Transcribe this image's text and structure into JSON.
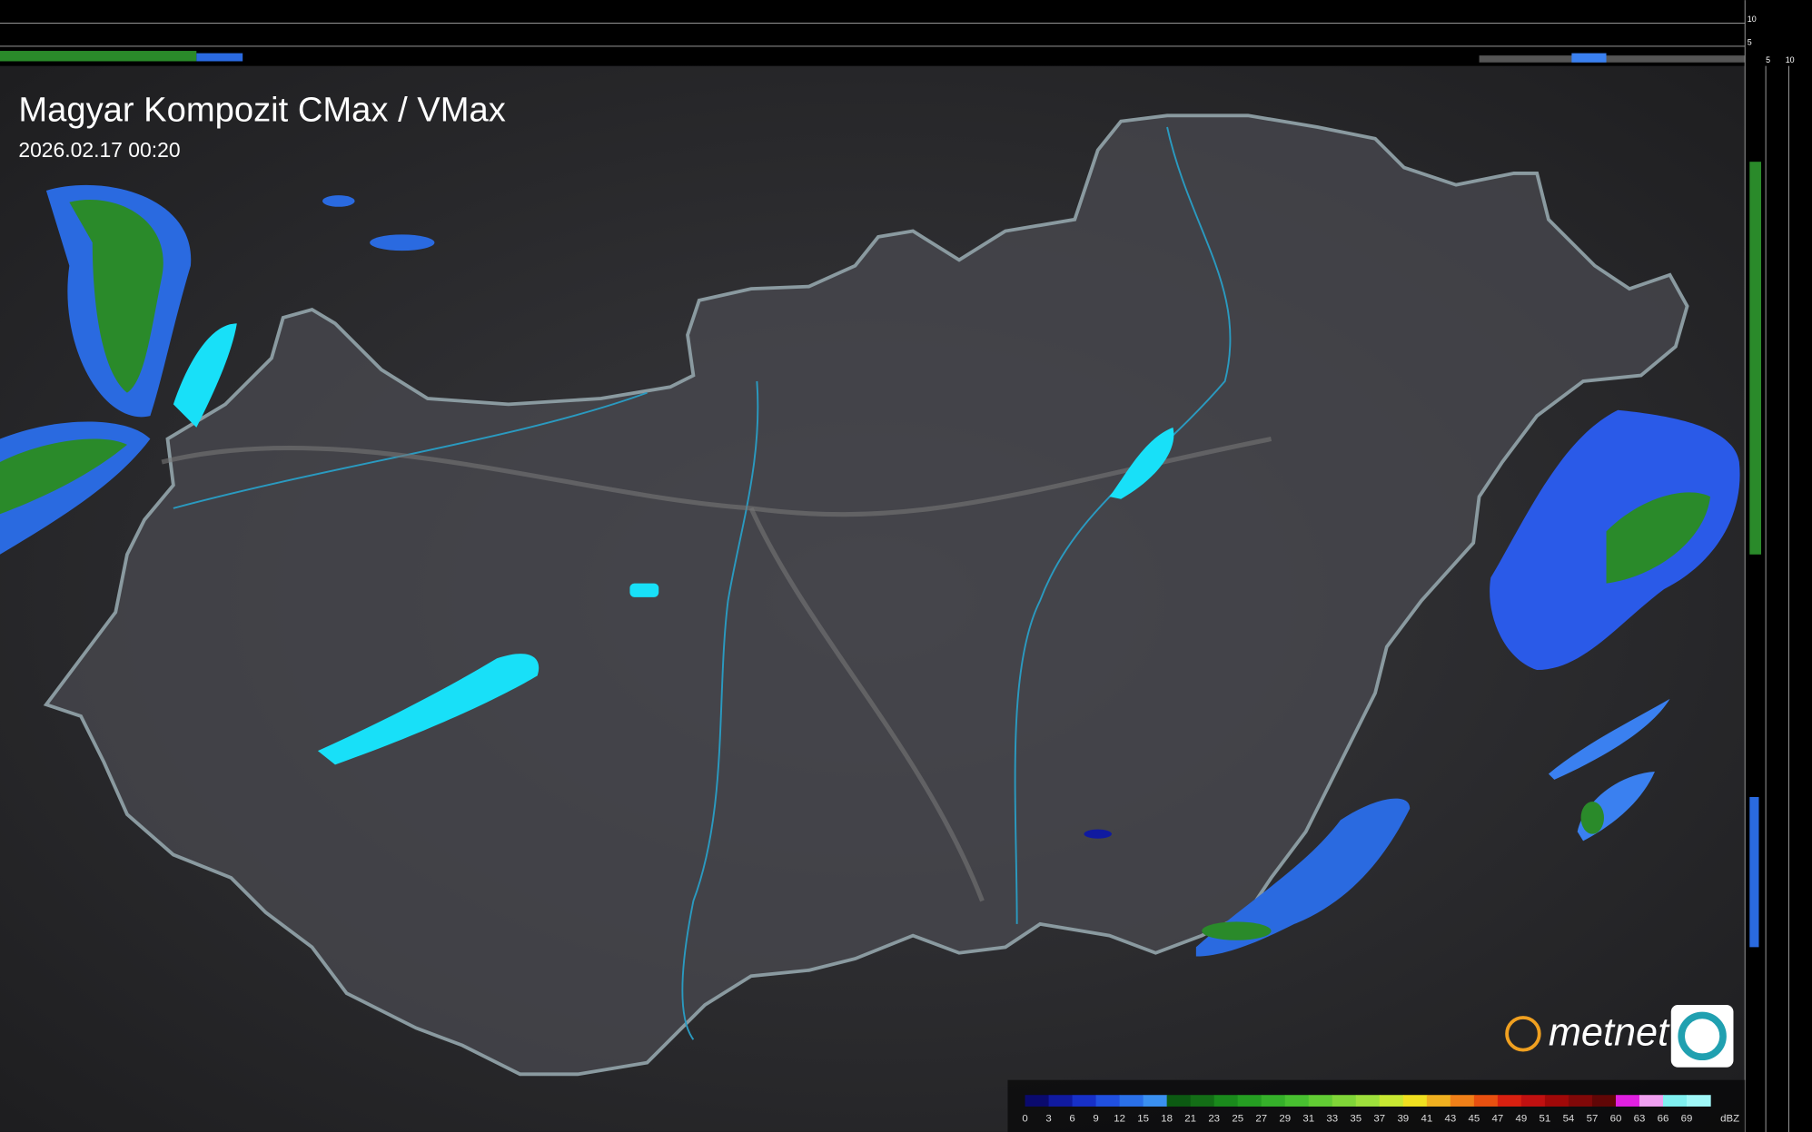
{
  "header": {
    "title": "Magyar Kompozit CMax / VMax",
    "timestamp": "2026.02.17 00:20"
  },
  "side_axis": {
    "top_ticks": [
      "10",
      "5"
    ],
    "bottom_ticks": [
      "5",
      "10"
    ]
  },
  "logo": "metnet",
  "legend": {
    "unit": "dBZ",
    "labels": [
      "0",
      "3",
      "6",
      "9",
      "12",
      "15",
      "18",
      "21",
      "23",
      "25",
      "27",
      "29",
      "31",
      "33",
      "35",
      "37",
      "39",
      "41",
      "43",
      "45",
      "47",
      "49",
      "51",
      "54",
      "57",
      "60",
      "63",
      "66",
      "69"
    ],
    "colors": [
      "#0a0a6e",
      "#101aa0",
      "#1730c8",
      "#2050e0",
      "#2a70e8",
      "#3a90f0",
      "#0c5a12",
      "#136e16",
      "#1a8a1c",
      "#259e22",
      "#35b02a",
      "#48c030",
      "#62cc34",
      "#80d638",
      "#9ee03c",
      "#c8e832",
      "#f0e020",
      "#f0b020",
      "#f08018",
      "#e85010",
      "#d82010",
      "#c01010",
      "#a00808",
      "#800808",
      "#600606",
      "#e020e0",
      "#f0a0f0",
      "#80f0f0",
      "#a0f8f8"
    ]
  }
}
